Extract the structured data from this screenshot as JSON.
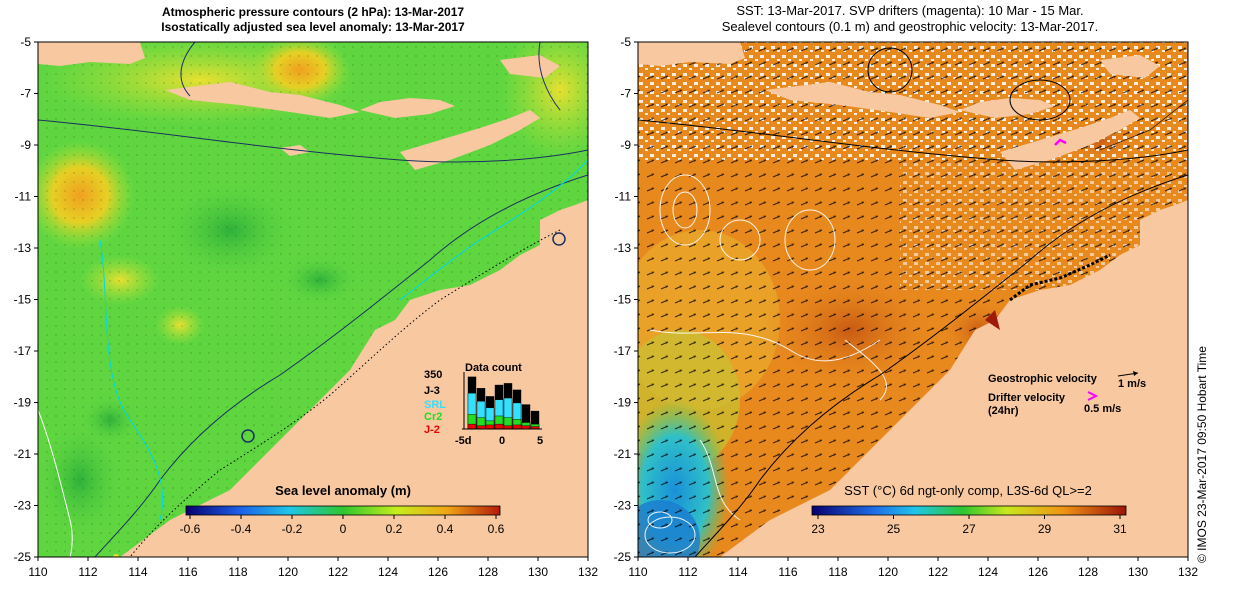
{
  "left_panel": {
    "title_line1": "Atmospheric pressure contours (2 hPa): 13-Mar-2017",
    "title_line2": "Isostatically adjusted sea level anomaly: 13-Mar-2017",
    "colorbar_label": "Sea level anomaly (m)",
    "colorbar_ticks": [
      "-0.6",
      "-0.4",
      "-0.2",
      "0",
      "0.2",
      "0.4",
      "0.6"
    ],
    "data_count": {
      "title": "Data count",
      "max_label": "350",
      "series": [
        {
          "name": "J-3",
          "color": "#000000"
        },
        {
          "name": "SRL",
          "color": "#33e0ff"
        },
        {
          "name": "Cr2",
          "color": "#22dd22"
        },
        {
          "name": "J-2",
          "color": "#ee0000"
        }
      ],
      "axis_labels": [
        "-5d",
        "0",
        "5"
      ],
      "j3": [
        320,
        250,
        200,
        270,
        280,
        240,
        150,
        110
      ],
      "srl": [
        220,
        170,
        130,
        180,
        190,
        160,
        0,
        0
      ],
      "cr2": [
        90,
        70,
        50,
        80,
        70,
        60,
        40,
        30
      ],
      "j2": [
        30,
        20,
        25,
        30,
        20,
        25,
        20,
        15
      ]
    }
  },
  "right_panel": {
    "title_line1": "SST: 13-Mar-2017. SVP drifters (magenta): 10 Mar - 15 Mar.",
    "title_line2": "Sealevel contours (0.1 m) and geostrophic velocity: 13-Mar-2017.",
    "colorbar_label": "SST (°C) 6d ngt-only comp, L3S-6d QL>=2",
    "colorbar_ticks": [
      "23",
      "25",
      "27",
      "29",
      "31"
    ],
    "legend": {
      "geostrophic_label": "Geostrophic velocity",
      "geostrophic_scale": "1 m/s",
      "drifter_label_line1": "Drifter velocity",
      "drifter_label_line2": "(24hr)",
      "drifter_scale": "0.5 m/s"
    }
  },
  "axes": {
    "lat_ticks": [
      "-5",
      "-7",
      "-9",
      "-11",
      "-13",
      "-15",
      "-17",
      "-19",
      "-21",
      "-23",
      "-25"
    ],
    "lon_ticks": [
      "110",
      "112",
      "114",
      "116",
      "118",
      "120",
      "122",
      "124",
      "126",
      "128",
      "130",
      "132"
    ]
  },
  "credit": "© IMOS 23-Mar-2017 09:50 Hobart Time",
  "colors": {
    "land": "#f8c8a0",
    "ocean_sla": "#5fd640",
    "ocean_sst": "#e8891e",
    "drifter": "#ff00ff"
  }
}
